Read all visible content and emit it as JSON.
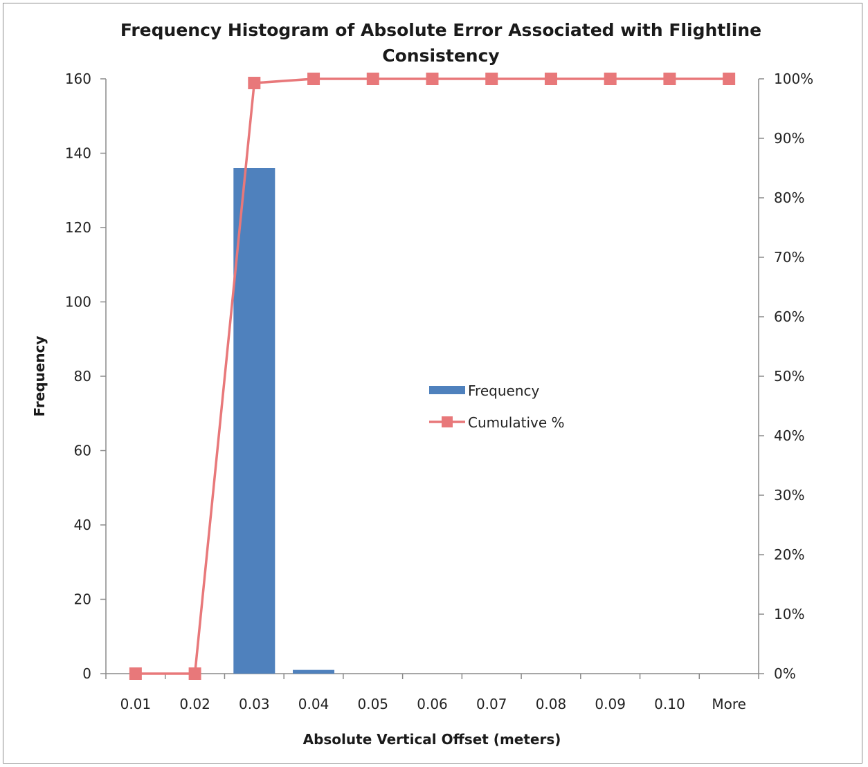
{
  "chart_data": {
    "type": "bar",
    "title_lines": [
      "Frequency Histogram of Absolute Error Associated with Flightline",
      "Consistency"
    ],
    "xlabel": "Absolute Vertical Offset (meters)",
    "ylabel": "Frequency",
    "categories": [
      "0.01",
      "0.02",
      "0.03",
      "0.04",
      "0.05",
      "0.06",
      "0.07",
      "0.08",
      "0.09",
      "0.10",
      "More"
    ],
    "ylim": [
      0,
      160
    ],
    "y_ticks": [
      "0",
      "20",
      "40",
      "60",
      "80",
      "100",
      "120",
      "140",
      "160"
    ],
    "y2lim": [
      0,
      100
    ],
    "y2_ticks": [
      "0%",
      "10%",
      "20%",
      "30%",
      "40%",
      "50%",
      "60%",
      "70%",
      "80%",
      "90%",
      "100%"
    ],
    "series": [
      {
        "name": "Frequency",
        "type": "bar",
        "axis": "left",
        "color": "#4f81bd",
        "values": [
          0,
          0,
          136,
          1,
          0,
          0,
          0,
          0,
          0,
          0,
          0
        ]
      },
      {
        "name": "Cumulative %",
        "type": "line",
        "axis": "right",
        "color": "#e8787a",
        "values": [
          0,
          0,
          99.3,
          100,
          100,
          100,
          100,
          100,
          100,
          100,
          100
        ]
      }
    ],
    "legend_position": "center",
    "grid": false
  }
}
